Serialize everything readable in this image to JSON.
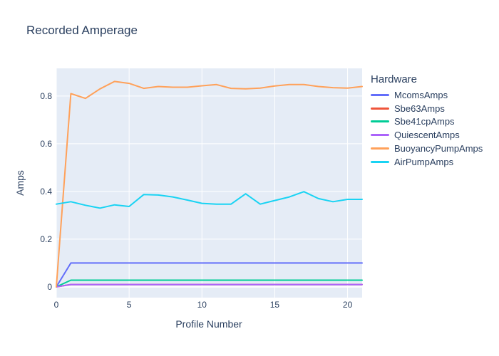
{
  "colors": {
    "text": "#2a3f5f",
    "plot_bg": "#e5ecf6",
    "grid": "#ffffff",
    "page_bg": "#ffffff"
  },
  "chart_data": {
    "type": "line",
    "title": "Recorded Amperage",
    "xlabel": "Profile Number",
    "ylabel": "Amps",
    "legend_title": "Hardware",
    "legend_position": "right",
    "grid": true,
    "xlim": [
      0,
      21
    ],
    "ylim": [
      -0.045,
      0.916
    ],
    "xticks": [
      0,
      5,
      10,
      15,
      20
    ],
    "yticks": [
      0,
      0.2,
      0.4,
      0.6,
      0.8
    ],
    "x": [
      0,
      1,
      2,
      3,
      4,
      5,
      6,
      7,
      8,
      9,
      10,
      11,
      12,
      13,
      14,
      15,
      16,
      17,
      18,
      19,
      20,
      21
    ],
    "series": [
      {
        "name": "McomsAmps",
        "color": "#636EFA",
        "values": [
          0,
          0.1,
          0.1,
          0.1,
          0.1,
          0.1,
          0.1,
          0.1,
          0.1,
          0.1,
          0.1,
          0.1,
          0.1,
          0.1,
          0.1,
          0.1,
          0.1,
          0.1,
          0.1,
          0.1,
          0.1,
          0.1
        ]
      },
      {
        "name": "Sbe63Amps",
        "color": "#EF553B",
        "values": [
          0,
          0.01,
          0.01,
          0.01,
          0.01,
          0.01,
          0.01,
          0.01,
          0.01,
          0.01,
          0.01,
          0.01,
          0.01,
          0.01,
          0.01,
          0.01,
          0.01,
          0.01,
          0.01,
          0.01,
          0.01,
          0.01
        ]
      },
      {
        "name": "Sbe41cpAmps",
        "color": "#00CC96",
        "values": [
          0,
          0.028,
          0.028,
          0.028,
          0.028,
          0.028,
          0.028,
          0.028,
          0.028,
          0.028,
          0.028,
          0.028,
          0.028,
          0.028,
          0.028,
          0.028,
          0.028,
          0.028,
          0.028,
          0.028,
          0.028,
          0.028
        ]
      },
      {
        "name": "QuiescentAmps",
        "color": "#AB63FA",
        "values": [
          0,
          0.01,
          0.01,
          0.01,
          0.01,
          0.01,
          0.01,
          0.01,
          0.01,
          0.01,
          0.01,
          0.01,
          0.01,
          0.01,
          0.01,
          0.01,
          0.01,
          0.01,
          0.01,
          0.01,
          0.01,
          0.01
        ]
      },
      {
        "name": "BuoyancyPumpAmps",
        "color": "#FFA15A",
        "values": [
          0,
          0.81,
          0.79,
          0.83,
          0.861,
          0.853,
          0.832,
          0.84,
          0.837,
          0.837,
          0.843,
          0.848,
          0.832,
          0.83,
          0.833,
          0.842,
          0.848,
          0.848,
          0.84,
          0.835,
          0.833,
          0.84
        ]
      },
      {
        "name": "AirPumpAmps",
        "color": "#19D3F3",
        "values": [
          0.347,
          0.357,
          0.342,
          0.33,
          0.344,
          0.337,
          0.387,
          0.385,
          0.377,
          0.364,
          0.35,
          0.347,
          0.347,
          0.39,
          0.347,
          0.362,
          0.377,
          0.399,
          0.37,
          0.357,
          0.367,
          0.367
        ]
      }
    ]
  }
}
